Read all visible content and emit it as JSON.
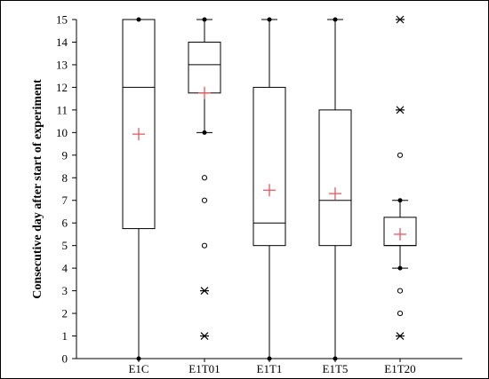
{
  "chart_data": {
    "type": "box",
    "title": "",
    "xlabel": "",
    "ylabel": "Consecutive day after start of experiment",
    "ylim": [
      0,
      15
    ],
    "yticks": [
      0,
      1,
      2,
      3,
      4,
      5,
      6,
      7,
      8,
      9,
      10,
      11,
      12,
      13,
      14,
      15
    ],
    "grid": false,
    "legend": "none",
    "colors": {
      "box": "#000000",
      "mean_marker": "#e8585a"
    },
    "categories": [
      "E1C",
      "E1T01",
      "E1T1",
      "E1T5",
      "E1T20"
    ],
    "boxes": [
      {
        "label": "E1C",
        "whisker_low": 0,
        "q1": 5.75,
        "median": 12,
        "q3": 15,
        "whisker_high": 15,
        "mean": 9.93,
        "outliers": [],
        "extremes": []
      },
      {
        "label": "E1T01",
        "whisker_low": 10,
        "q1": 11.75,
        "median": 13,
        "q3": 14,
        "whisker_high": 15,
        "mean": 11.75,
        "outliers": [
          8,
          7,
          5
        ],
        "extremes": [
          3,
          1
        ]
      },
      {
        "label": "E1T1",
        "whisker_low": 0,
        "q1": 5,
        "median": 6,
        "q3": 12,
        "whisker_high": 15,
        "mean": 7.45,
        "outliers": [],
        "extremes": []
      },
      {
        "label": "E1T5",
        "whisker_low": 0,
        "q1": 5,
        "median": 7,
        "q3": 11,
        "whisker_high": 15,
        "mean": 7.3,
        "outliers": [],
        "extremes": []
      },
      {
        "label": "E1T20",
        "whisker_low": 4,
        "q1": 5,
        "median": 5,
        "q3": 6.25,
        "whisker_high": 7,
        "mean": 5.5,
        "outliers": [
          9,
          3,
          2
        ],
        "extremes": [
          15,
          11,
          1
        ]
      }
    ]
  }
}
